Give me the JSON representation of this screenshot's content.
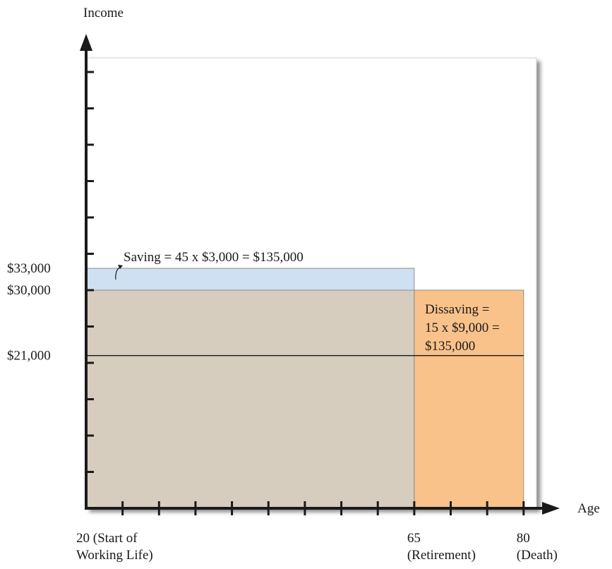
{
  "chart_data": {
    "type": "area",
    "title": "",
    "xlabel": "Age",
    "ylabel": "Income",
    "ylim": [
      0,
      60000
    ],
    "y_tick_labels": [
      {
        "value": 33000,
        "label": "$33,000"
      },
      {
        "value": 30000,
        "label": "$30,000"
      },
      {
        "value": 21000,
        "label": "$21,000"
      }
    ],
    "x_tick_labels": [
      {
        "value": 20,
        "lines": [
          "20 (Start of",
          "Working Life)"
        ]
      },
      {
        "value": 65,
        "lines": [
          "65",
          "(Retirement)"
        ]
      },
      {
        "value": 80,
        "lines": [
          "80",
          "(Death)"
        ]
      }
    ],
    "regions": [
      {
        "name": "saving",
        "x": [
          20,
          65
        ],
        "y": [
          30000,
          33000
        ],
        "color": "#cfe0f2"
      },
      {
        "name": "working-consumption",
        "x": [
          20,
          65
        ],
        "y": [
          0,
          30000
        ],
        "color": "#d6cdbf"
      },
      {
        "name": "dissaving",
        "x": [
          65,
          80
        ],
        "y": [
          0,
          30000
        ],
        "color": "#f9c28a"
      }
    ],
    "reference_line": {
      "y": 21000,
      "x": [
        20,
        80
      ]
    },
    "annotations": {
      "saving": "Saving = 45 x $3,000 = $135,000",
      "dissaving": [
        "Dissaving =",
        "15 x  $9,000 =",
        "$135,000"
      ]
    }
  }
}
